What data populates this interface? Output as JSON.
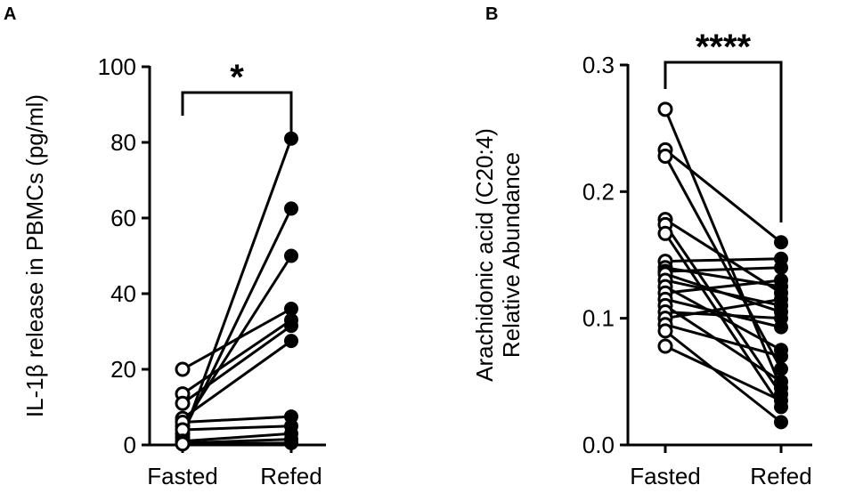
{
  "chart_data": [
    {
      "panel_label": "A",
      "type": "line",
      "title": "",
      "ylabel": "IL-1β release in PBMCs (pg/ml)",
      "xlabel": "",
      "categories": [
        "Fasted",
        "Refed"
      ],
      "ylim": [
        0,
        100
      ],
      "yticks": [
        "0",
        "20",
        "40",
        "60",
        "80",
        "100"
      ],
      "yticks_values": [
        0,
        20,
        40,
        60,
        80,
        100
      ],
      "significance": "*",
      "pairs": [
        [
          2,
          81
        ],
        [
          3,
          62.5
        ],
        [
          5,
          50
        ],
        [
          20,
          36
        ],
        [
          13.5,
          33
        ],
        [
          11,
          31.5
        ],
        [
          7,
          27.5
        ],
        [
          6,
          7.5
        ],
        [
          4,
          5
        ],
        [
          1,
          3
        ],
        [
          0.5,
          1.5
        ],
        [
          0.3,
          0.5
        ]
      ],
      "grid": false
    },
    {
      "panel_label": "B",
      "type": "line",
      "title": "",
      "ylabel": "Arachidonic acid (C20:4)",
      "ylabel2": "Relative Abundance",
      "xlabel": "",
      "categories": [
        "Fasted",
        "Refed"
      ],
      "ylim": [
        0,
        0.3
      ],
      "yticks": [
        "0.0",
        "0.1",
        "0.2",
        "0.3"
      ],
      "yticks_values": [
        0,
        0.1,
        0.2,
        0.3
      ],
      "significance": "****",
      "pairs": [
        [
          0.265,
          0.045
        ],
        [
          0.233,
          0.16
        ],
        [
          0.228,
          0.06
        ],
        [
          0.178,
          0.12
        ],
        [
          0.174,
          0.04
        ],
        [
          0.167,
          0.03
        ],
        [
          0.145,
          0.147
        ],
        [
          0.14,
          0.125
        ],
        [
          0.137,
          0.14
        ],
        [
          0.135,
          0.105
        ],
        [
          0.13,
          0.11
        ],
        [
          0.125,
          0.075
        ],
        [
          0.12,
          0.13
        ],
        [
          0.115,
          0.093
        ],
        [
          0.11,
          0.05
        ],
        [
          0.105,
          0.1
        ],
        [
          0.1,
          0.115
        ],
        [
          0.095,
          0.07
        ],
        [
          0.09,
          0.018
        ],
        [
          0.078,
          0.035
        ]
      ],
      "grid": false
    }
  ]
}
